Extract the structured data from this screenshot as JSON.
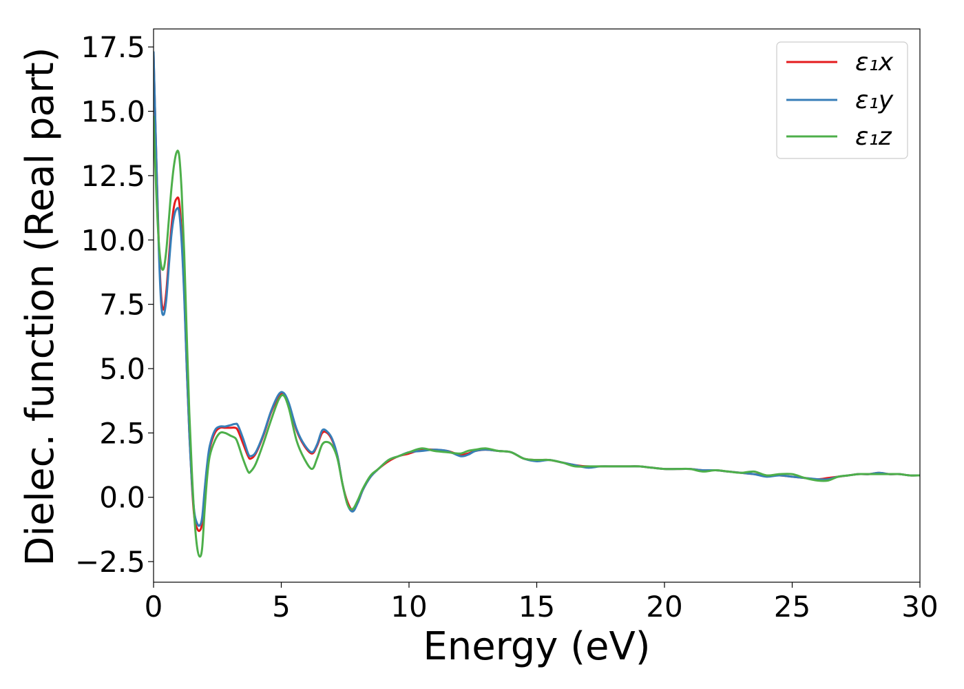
{
  "chart_data": {
    "type": "line",
    "title": "",
    "xlabel": "Energy (eV)",
    "ylabel": "Dielec. function (Real part)",
    "xlim": [
      0,
      30
    ],
    "ylim": [
      -3.3,
      18.2
    ],
    "xticks": [
      0,
      5,
      10,
      15,
      20,
      25,
      30
    ],
    "xtick_labels": [
      "0",
      "5",
      "10",
      "15",
      "20",
      "25",
      "30"
    ],
    "yticks": [
      -2.5,
      0.0,
      2.5,
      5.0,
      7.5,
      10.0,
      12.5,
      15.0,
      17.5
    ],
    "ytick_labels": [
      "−2.5",
      "0.0",
      "2.5",
      "5.0",
      "7.5",
      "10.0",
      "12.5",
      "15.0",
      "17.5"
    ],
    "grid": false,
    "legend_position": "top-right",
    "series": [
      {
        "name": "ε₁x",
        "color": "#e41a1c",
        "x": [
          0.0,
          0.1,
          0.2,
          0.3,
          0.4,
          0.5,
          0.6,
          0.7,
          0.8,
          0.9,
          1.0,
          1.1,
          1.2,
          1.3,
          1.4,
          1.5,
          1.6,
          1.7,
          1.8,
          1.9,
          2.0,
          2.1,
          2.2,
          2.4,
          2.6,
          2.8,
          3.0,
          3.2,
          3.3,
          3.5,
          3.7,
          3.8,
          4.0,
          4.3,
          4.6,
          4.9,
          5.1,
          5.3,
          5.6,
          5.9,
          6.2,
          6.4,
          6.6,
          6.8,
          7.0,
          7.2,
          7.4,
          7.6,
          7.8,
          8.0,
          8.2,
          8.5,
          8.8,
          9.2,
          9.6,
          10.0,
          10.5,
          11.0,
          11.5,
          12.0,
          12.3,
          12.6,
          13.0,
          13.5,
          14.0,
          14.5,
          15.0,
          15.5,
          16.0,
          16.5,
          17.0,
          17.5,
          18.0,
          18.5,
          19.0,
          19.5,
          20.0,
          20.5,
          21.0,
          21.5,
          22.0,
          22.5,
          23.0,
          23.5,
          24.0,
          24.5,
          25.0,
          25.5,
          26.0,
          26.4,
          26.8,
          27.2,
          27.6,
          28.0,
          28.4,
          28.8,
          29.2,
          29.6,
          30.0
        ],
        "y": [
          17.2,
          13.5,
          10.0,
          7.8,
          7.3,
          8.0,
          9.3,
          10.5,
          11.3,
          11.6,
          11.5,
          10.2,
          8.0,
          5.0,
          2.5,
          0.5,
          -0.8,
          -1.2,
          -1.3,
          -1.0,
          0.2,
          1.2,
          1.9,
          2.5,
          2.7,
          2.7,
          2.7,
          2.7,
          2.6,
          2.1,
          1.6,
          1.5,
          1.7,
          2.4,
          3.3,
          3.9,
          4.0,
          3.6,
          2.6,
          2.0,
          1.7,
          2.0,
          2.5,
          2.5,
          2.2,
          1.6,
          0.5,
          -0.2,
          -0.5,
          -0.2,
          0.3,
          0.8,
          1.1,
          1.4,
          1.6,
          1.7,
          1.85,
          1.85,
          1.8,
          1.65,
          1.7,
          1.8,
          1.85,
          1.8,
          1.75,
          1.5,
          1.45,
          1.45,
          1.35,
          1.25,
          1.2,
          1.2,
          1.2,
          1.2,
          1.2,
          1.15,
          1.1,
          1.1,
          1.1,
          1.05,
          1.05,
          1.0,
          0.95,
          0.9,
          0.85,
          0.85,
          0.8,
          0.75,
          0.7,
          0.75,
          0.8,
          0.85,
          0.9,
          0.9,
          0.95,
          0.9,
          0.9,
          0.85,
          0.85
        ]
      },
      {
        "name": "ε₁y",
        "color": "#377eb8",
        "x": [
          0.0,
          0.1,
          0.2,
          0.3,
          0.4,
          0.5,
          0.6,
          0.7,
          0.8,
          0.9,
          1.0,
          1.1,
          1.2,
          1.3,
          1.4,
          1.5,
          1.6,
          1.7,
          1.8,
          1.9,
          2.0,
          2.1,
          2.2,
          2.4,
          2.6,
          2.8,
          3.0,
          3.2,
          3.3,
          3.5,
          3.7,
          3.8,
          4.0,
          4.3,
          4.6,
          4.9,
          5.1,
          5.3,
          5.6,
          5.9,
          6.2,
          6.4,
          6.6,
          6.8,
          7.0,
          7.2,
          7.4,
          7.6,
          7.8,
          8.0,
          8.2,
          8.5,
          8.8,
          9.2,
          9.6,
          10.0,
          10.5,
          11.0,
          11.5,
          12.0,
          12.3,
          12.6,
          13.0,
          13.5,
          14.0,
          14.5,
          15.0,
          15.5,
          16.0,
          16.5,
          17.0,
          17.5,
          18.0,
          18.5,
          19.0,
          19.5,
          20.0,
          20.5,
          21.0,
          21.5,
          22.0,
          22.5,
          23.0,
          23.5,
          24.0,
          24.5,
          25.0,
          25.5,
          26.0,
          26.4,
          26.8,
          27.2,
          27.6,
          28.0,
          28.4,
          28.8,
          29.2,
          29.6,
          30.0
        ],
        "y": [
          17.3,
          13.5,
          9.8,
          7.5,
          7.1,
          7.7,
          9.0,
          10.2,
          10.9,
          11.2,
          11.1,
          9.9,
          7.8,
          5.0,
          2.5,
          0.6,
          -0.6,
          -1.0,
          -1.1,
          -0.8,
          0.3,
          1.3,
          2.0,
          2.6,
          2.75,
          2.75,
          2.8,
          2.85,
          2.8,
          2.3,
          1.7,
          1.6,
          1.75,
          2.45,
          3.35,
          4.0,
          4.05,
          3.65,
          2.65,
          2.05,
          1.75,
          2.05,
          2.6,
          2.55,
          2.25,
          1.6,
          0.5,
          -0.3,
          -0.55,
          -0.2,
          0.3,
          0.8,
          1.1,
          1.45,
          1.6,
          1.75,
          1.8,
          1.85,
          1.8,
          1.6,
          1.65,
          1.8,
          1.85,
          1.8,
          1.75,
          1.5,
          1.4,
          1.45,
          1.35,
          1.25,
          1.15,
          1.2,
          1.2,
          1.2,
          1.2,
          1.15,
          1.1,
          1.1,
          1.1,
          1.05,
          1.05,
          1.0,
          0.95,
          0.9,
          0.8,
          0.85,
          0.8,
          0.75,
          0.7,
          0.7,
          0.8,
          0.85,
          0.9,
          0.9,
          0.95,
          0.9,
          0.9,
          0.85,
          0.85
        ]
      },
      {
        "name": "ε₁z",
        "color": "#4daf4a",
        "x": [
          0.0,
          0.1,
          0.2,
          0.3,
          0.4,
          0.5,
          0.6,
          0.7,
          0.8,
          0.9,
          1.0,
          1.1,
          1.2,
          1.3,
          1.4,
          1.5,
          1.6,
          1.7,
          1.8,
          1.9,
          2.0,
          2.1,
          2.2,
          2.4,
          2.6,
          2.8,
          3.0,
          3.2,
          3.3,
          3.5,
          3.7,
          3.8,
          4.0,
          4.3,
          4.6,
          4.9,
          5.1,
          5.3,
          5.6,
          5.9,
          6.2,
          6.4,
          6.6,
          6.8,
          7.0,
          7.2,
          7.4,
          7.6,
          7.8,
          8.0,
          8.2,
          8.5,
          8.8,
          9.2,
          9.6,
          10.0,
          10.5,
          11.0,
          11.5,
          12.0,
          12.3,
          12.6,
          13.0,
          13.5,
          14.0,
          14.5,
          15.0,
          15.5,
          16.0,
          16.5,
          17.0,
          17.5,
          18.0,
          18.5,
          19.0,
          19.5,
          20.0,
          20.5,
          21.0,
          21.5,
          22.0,
          22.5,
          23.0,
          23.5,
          24.0,
          24.5,
          25.0,
          25.5,
          26.0,
          26.4,
          26.8,
          27.2,
          27.6,
          28.0,
          28.4,
          28.8,
          29.2,
          29.6,
          30.0
        ],
        "y": [
          14.8,
          12.0,
          10.0,
          9.0,
          8.9,
          9.6,
          10.8,
          12.0,
          12.9,
          13.4,
          13.3,
          11.9,
          9.5,
          6.3,
          3.3,
          1.0,
          -0.8,
          -1.9,
          -2.3,
          -2.0,
          -0.5,
          0.8,
          1.6,
          2.2,
          2.5,
          2.5,
          2.4,
          2.3,
          2.1,
          1.5,
          1.0,
          1.0,
          1.3,
          2.1,
          3.0,
          3.8,
          3.95,
          3.45,
          2.2,
          1.5,
          1.1,
          1.5,
          2.05,
          2.15,
          2.0,
          1.5,
          0.5,
          -0.3,
          -0.45,
          -0.1,
          0.35,
          0.85,
          1.1,
          1.45,
          1.6,
          1.75,
          1.9,
          1.8,
          1.75,
          1.7,
          1.8,
          1.85,
          1.9,
          1.8,
          1.75,
          1.5,
          1.45,
          1.45,
          1.35,
          1.2,
          1.2,
          1.2,
          1.2,
          1.2,
          1.2,
          1.15,
          1.1,
          1.1,
          1.1,
          1.0,
          1.05,
          1.0,
          0.95,
          1.0,
          0.85,
          0.9,
          0.9,
          0.75,
          0.65,
          0.65,
          0.8,
          0.85,
          0.9,
          0.9,
          0.9,
          0.9,
          0.9,
          0.85,
          0.85
        ]
      }
    ]
  }
}
